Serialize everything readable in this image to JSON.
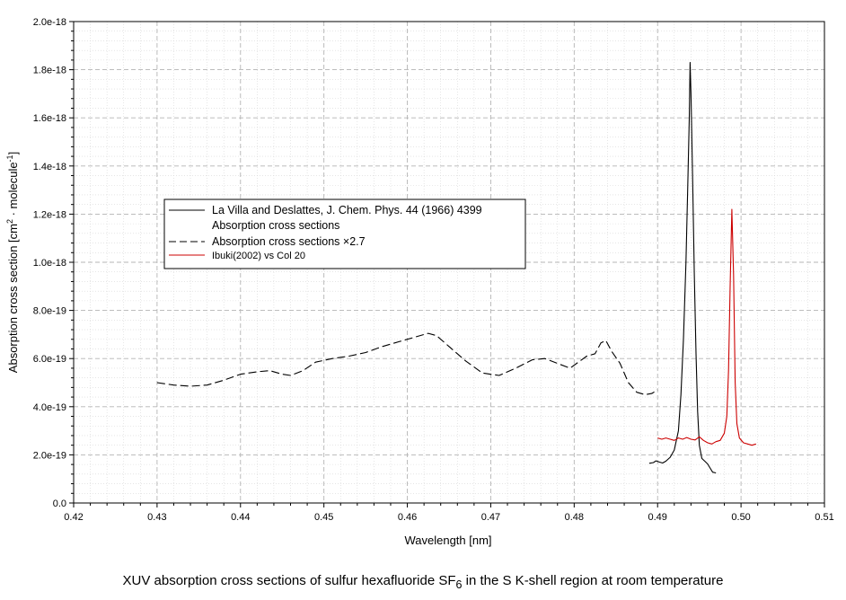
{
  "chart_data": {
    "type": "line",
    "xlabel": "Wavelength [nm]",
    "ylabel_prefix": "Absorption cross section [cm",
    "ylabel_sup1": "2",
    "ylabel_mid": " · molecule",
    "ylabel_sup2": "-1",
    "ylabel_suffix": "]",
    "xlim": [
      0.42,
      0.51
    ],
    "ylim": [
      0,
      2e-18
    ],
    "x_ticks": [
      0.42,
      0.43,
      0.44,
      0.45,
      0.46,
      0.47,
      0.48,
      0.49,
      0.5,
      0.51
    ],
    "x_tick_labels": [
      "0.42",
      "0.43",
      "0.44",
      "0.45",
      "0.46",
      "0.47",
      "0.48",
      "0.49",
      "0.50",
      "0.51"
    ],
    "y_ticks": [
      0,
      2e-19,
      4e-19,
      6e-19,
      8e-19,
      1e-18,
      1.2e-18,
      1.4e-18,
      1.6e-18,
      1.8e-18,
      2e-18
    ],
    "y_tick_labels": [
      "0.0",
      "2.0e-19",
      "4.0e-19",
      "6.0e-19",
      "8.0e-19",
      "1.0e-18",
      "1.2e-18",
      "1.4e-18",
      "1.6e-18",
      "1.8e-18",
      "2.0e-18"
    ],
    "grid": true,
    "legend_position": "upper-left",
    "legend": [
      {
        "label": "La Villa and Deslattes, J. Chem. Phys. 44 (1966) 4399",
        "style": "none"
      },
      {
        "label": "Absorption cross sections",
        "style": "solid"
      },
      {
        "label": "Absorption cross sections ×2.7",
        "style": "dashed"
      },
      {
        "label": "Ibuki(2002) vs Col 20",
        "style": "red"
      }
    ],
    "series": [
      {
        "style": "solid",
        "color": "#000000",
        "points": [
          [
            0.489,
            1.65e-19
          ],
          [
            0.4895,
            1.68e-19
          ],
          [
            0.4898,
            1.75e-19
          ],
          [
            0.4902,
            1.7e-19
          ],
          [
            0.4906,
            1.66e-19
          ],
          [
            0.491,
            1.74e-19
          ],
          [
            0.4915,
            1.9e-19
          ],
          [
            0.492,
            2.2e-19
          ],
          [
            0.4925,
            3e-19
          ],
          [
            0.4928,
            4.5e-19
          ],
          [
            0.4931,
            6.8e-19
          ],
          [
            0.4934,
            1e-18
          ],
          [
            0.4936,
            1.3e-18
          ],
          [
            0.4938,
            1.6e-18
          ],
          [
            0.4939,
            1.83e-18
          ],
          [
            0.494,
            1.7e-18
          ],
          [
            0.4942,
            1.35e-18
          ],
          [
            0.4944,
            9.5e-19
          ],
          [
            0.4946,
            6.2e-19
          ],
          [
            0.4948,
            3.8e-19
          ],
          [
            0.495,
            2.4e-19
          ],
          [
            0.4953,
            1.85e-19
          ],
          [
            0.4957,
            1.72e-19
          ],
          [
            0.496,
            1.62e-19
          ],
          [
            0.4963,
            1.45e-19
          ],
          [
            0.4966,
            1.28e-19
          ],
          [
            0.497,
            1.25e-19
          ]
        ]
      },
      {
        "style": "dashed",
        "color": "#000000",
        "points": [
          [
            0.43,
            5e-19
          ],
          [
            0.432,
            4.9e-19
          ],
          [
            0.434,
            4.85e-19
          ],
          [
            0.436,
            4.9e-19
          ],
          [
            0.438,
            5.1e-19
          ],
          [
            0.44,
            5.35e-19
          ],
          [
            0.442,
            5.45e-19
          ],
          [
            0.4435,
            5.5e-19
          ],
          [
            0.445,
            5.35e-19
          ],
          [
            0.446,
            5.3e-19
          ],
          [
            0.4475,
            5.5e-19
          ],
          [
            0.449,
            5.85e-19
          ],
          [
            0.451,
            6e-19
          ],
          [
            0.453,
            6.1e-19
          ],
          [
            0.455,
            6.25e-19
          ],
          [
            0.457,
            6.5e-19
          ],
          [
            0.459,
            6.7e-19
          ],
          [
            0.461,
            6.9e-19
          ],
          [
            0.4625,
            7.05e-19
          ],
          [
            0.4635,
            6.95e-19
          ],
          [
            0.465,
            6.5e-19
          ],
          [
            0.467,
            5.9e-19
          ],
          [
            0.469,
            5.4e-19
          ],
          [
            0.471,
            5.3e-19
          ],
          [
            0.473,
            5.6e-19
          ],
          [
            0.475,
            5.95e-19
          ],
          [
            0.4765,
            6e-19
          ],
          [
            0.478,
            5.8e-19
          ],
          [
            0.4795,
            5.6e-19
          ],
          [
            0.4805,
            5.85e-19
          ],
          [
            0.4815,
            6.1e-19
          ],
          [
            0.4825,
            6.2e-19
          ],
          [
            0.4832,
            6.65e-19
          ],
          [
            0.4838,
            6.75e-19
          ],
          [
            0.4845,
            6.3e-19
          ],
          [
            0.4855,
            5.8e-19
          ],
          [
            0.4865,
            5e-19
          ],
          [
            0.4875,
            4.6e-19
          ],
          [
            0.4885,
            4.5e-19
          ],
          [
            0.4893,
            4.55e-19
          ],
          [
            0.49,
            4.7e-19
          ]
        ]
      },
      {
        "style": "red",
        "color": "#cc0000",
        "points": [
          [
            0.49,
            2.7e-19
          ],
          [
            0.4905,
            2.65e-19
          ],
          [
            0.491,
            2.7e-19
          ],
          [
            0.4915,
            2.65e-19
          ],
          [
            0.492,
            2.6e-19
          ],
          [
            0.4925,
            2.7e-19
          ],
          [
            0.493,
            2.65e-19
          ],
          [
            0.4935,
            2.72e-19
          ],
          [
            0.494,
            2.65e-19
          ],
          [
            0.4945,
            2.62e-19
          ],
          [
            0.495,
            2.75e-19
          ],
          [
            0.4955,
            2.6e-19
          ],
          [
            0.496,
            2.5e-19
          ],
          [
            0.4965,
            2.45e-19
          ],
          [
            0.497,
            2.55e-19
          ],
          [
            0.4975,
            2.6e-19
          ],
          [
            0.498,
            2.9e-19
          ],
          [
            0.4983,
            3.6e-19
          ],
          [
            0.4985,
            5.5e-19
          ],
          [
            0.4987,
            9e-19
          ],
          [
            0.4989,
            1.22e-18
          ],
          [
            0.4991,
            9.5e-19
          ],
          [
            0.4993,
            5e-19
          ],
          [
            0.4995,
            3.3e-19
          ],
          [
            0.4998,
            2.7e-19
          ],
          [
            0.5003,
            2.5e-19
          ],
          [
            0.5008,
            2.45e-19
          ],
          [
            0.5013,
            2.4e-19
          ],
          [
            0.5018,
            2.45e-19
          ]
        ]
      }
    ]
  },
  "caption": {
    "prefix": "XUV absorption cross sections of sulfur hexafluoride SF",
    "subscript": "6",
    "suffix": " in the S K-shell region at room temperature"
  }
}
